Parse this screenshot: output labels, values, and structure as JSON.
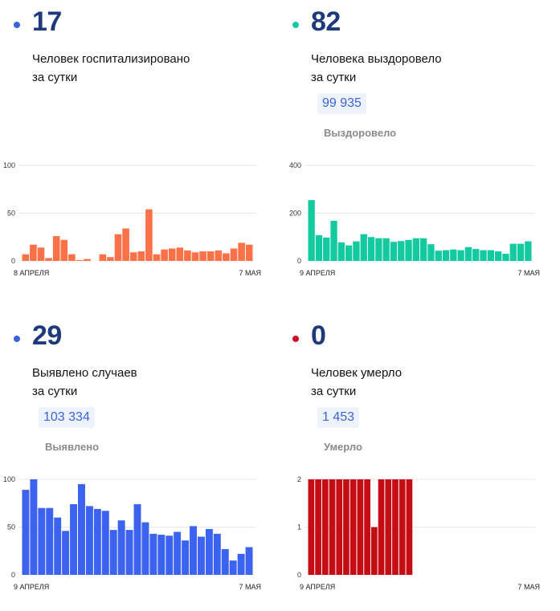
{
  "panels": [
    {
      "value": "17",
      "dot_color": "#3b63e0",
      "desc_line1": "Человек госпитализировано",
      "desc_line2": "за сутки",
      "total": "",
      "total_label": "",
      "chart_data": {
        "type": "bar",
        "color": "#fc7148",
        "ylim": [
          0,
          100
        ],
        "yticks": [
          "0",
          "50",
          "100"
        ],
        "x_start_label": "8 АПРЕЛЯ",
        "x_end_label": "7 МАЯ",
        "values": [
          7,
          17,
          14,
          3,
          26,
          22,
          7,
          1,
          2,
          0,
          7,
          4,
          28,
          34,
          9,
          10,
          54,
          7,
          12,
          13,
          14,
          11,
          9,
          10,
          10,
          11,
          8,
          13,
          19,
          17
        ]
      }
    },
    {
      "value": "82",
      "dot_color": "#13c9a2",
      "desc_line1": "Человека выздоровело",
      "desc_line2": "за сутки",
      "total": "99 935",
      "total_label": "Выздоровело",
      "chart_data": {
        "type": "bar",
        "color": "#12c9a0",
        "ylim": [
          0,
          400
        ],
        "yticks": [
          "0",
          "200",
          "400"
        ],
        "x_start_label": "9 АПРЕЛЯ",
        "x_end_label": "7 МАЯ",
        "values": [
          255,
          108,
          98,
          168,
          78,
          65,
          82,
          112,
          100,
          95,
          95,
          80,
          83,
          88,
          95,
          95,
          70,
          43,
          45,
          48,
          45,
          58,
          50,
          45,
          45,
          40,
          30,
          72,
          72,
          82
        ]
      }
    },
    {
      "value": "29",
      "dot_color": "#3b63e0",
      "desc_line1": "Выявлено случаев",
      "desc_line2": "за сутки",
      "total": "103 334",
      "total_label": "Выявлено",
      "chart_data": {
        "type": "bar",
        "color": "#3b63f0",
        "ylim": [
          0,
          100
        ],
        "yticks": [
          "0",
          "50",
          "100"
        ],
        "x_start_label": "9 АПРЕЛЯ",
        "x_end_label": "7 МАЯ",
        "values": [
          89,
          100,
          70,
          70,
          60,
          46,
          74,
          95,
          72,
          69,
          67,
          47,
          57,
          47,
          74,
          55,
          43,
          42,
          41,
          45,
          36,
          51,
          40,
          48,
          43,
          27,
          15,
          22,
          29
        ]
      }
    },
    {
      "value": "0",
      "dot_color": "#c8102e",
      "desc_line1": "Человек умерло",
      "desc_line2": "за сутки",
      "total": "1 453",
      "total_label": "Умерло",
      "chart_data": {
        "type": "bar",
        "color": "#c50d15",
        "ylim": [
          0,
          2
        ],
        "yticks": [
          "0",
          "1",
          "2"
        ],
        "x_start_label": "9 АПРЕЛЯ",
        "x_end_label": "7 МАЯ",
        "values": [
          2,
          2,
          2,
          2,
          2,
          2,
          2,
          2,
          2,
          1,
          2,
          2,
          2,
          2,
          2,
          0,
          0,
          0,
          0,
          0,
          0,
          0,
          0,
          0,
          0,
          0,
          0,
          0,
          0,
          0,
          0,
          0
        ]
      }
    }
  ]
}
